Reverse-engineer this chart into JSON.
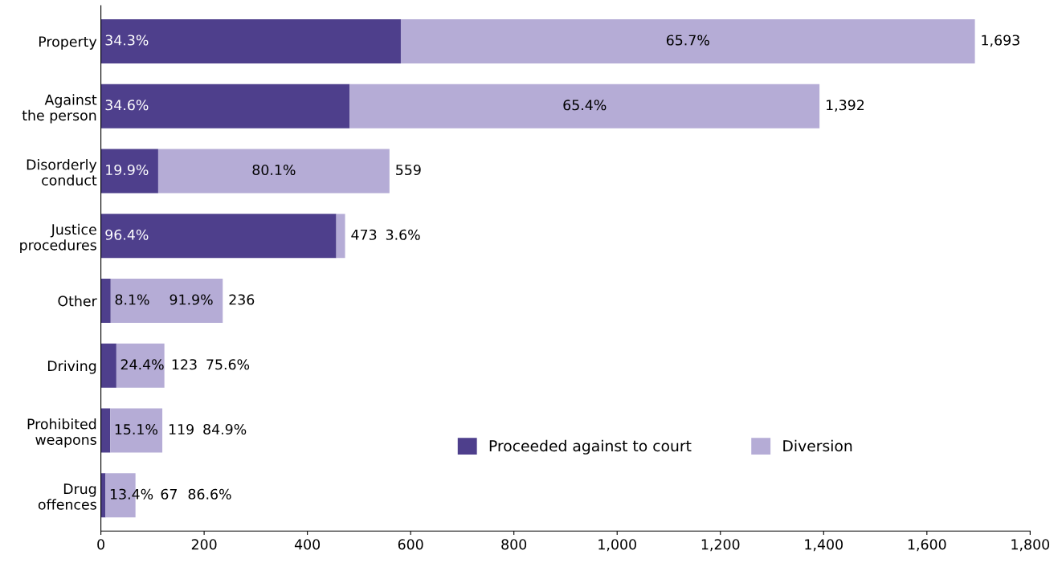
{
  "chart_data": {
    "type": "bar",
    "orientation": "horizontal",
    "stacked": true,
    "categories": [
      "Property",
      "Against\nthe person",
      "Disorderly\nconduct",
      "Justice\nprocedures",
      "Other",
      "Driving",
      "Prohibited\nweapons",
      "Drug\noffences"
    ],
    "series": [
      {
        "name": "Proceeded against to court",
        "color": "#4e3f8c",
        "values": [
          581,
          482,
          111,
          456,
          19,
          30,
          18,
          9
        ]
      },
      {
        "name": "Diversion",
        "color": "#b5acd6",
        "values": [
          1112,
          910,
          448,
          17,
          217,
          93,
          101,
          58
        ]
      }
    ],
    "totals": [
      "1,693",
      "1,392",
      "559",
      "473",
      "236",
      "123",
      "119",
      "67"
    ],
    "annotations": [
      "34.3%",
      "34.6%",
      "19.9%",
      "96.4%",
      "8.1%",
      "24.4%",
      "15.1%",
      "13.4%",
      "65.7%",
      "65.4%",
      "80.1%",
      "3.6%",
      "91.9%",
      "75.6%",
      "84.9%",
      "86.6%"
    ],
    "xlim": [
      0,
      1800
    ],
    "xticks": [
      0,
      200,
      400,
      600,
      800,
      {
        "value": 1000,
        "label": "1,000"
      },
      {
        "value": 1200,
        "label": "1,200"
      },
      {
        "value": 1400,
        "label": "1,400"
      },
      {
        "value": 1600,
        "label": "1,600"
      },
      {
        "value": 1800,
        "label": "1,800"
      }
    ],
    "legend": "bottom right",
    "grid": false
  }
}
